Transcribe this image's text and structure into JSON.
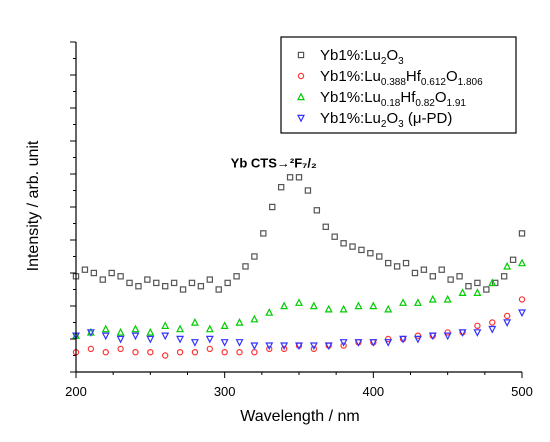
{
  "chart_data": {
    "type": "scatter",
    "xlabel": "Wavelength / nm",
    "ylabel": "Intensity / arb. unit",
    "xlim": [
      200,
      500
    ],
    "ylim": [
      0,
      100
    ],
    "x_ticks": [
      200,
      300,
      400,
      500
    ],
    "y_ticks_labeled": false,
    "grid": false,
    "legend_position": "top-right",
    "annotation": {
      "text": "Yb CTS→²F₇/₂",
      "x": 333,
      "y": 62
    },
    "series": [
      {
        "name": "Yb1%:Lu2O3",
        "label_parts": [
          [
            "Yb1%:Lu",
            "n"
          ],
          [
            "2",
            "sub"
          ],
          [
            "O",
            "n"
          ],
          [
            "3",
            "sub"
          ]
        ],
        "color": "#555555",
        "marker": "square",
        "x": [
          200,
          206,
          212,
          218,
          224,
          230,
          236,
          242,
          248,
          254,
          260,
          266,
          272,
          278,
          284,
          290,
          296,
          302,
          308,
          314,
          320,
          326,
          332,
          338,
          344,
          350,
          356,
          362,
          368,
          374,
          380,
          386,
          392,
          398,
          404,
          410,
          416,
          422,
          428,
          434,
          440,
          446,
          452,
          458,
          464,
          470,
          476,
          482,
          488,
          494,
          500
        ],
        "y": [
          29,
          31,
          30,
          28,
          30,
          29,
          27,
          26,
          28,
          27,
          26,
          27,
          25,
          27,
          26,
          28,
          25,
          27,
          29,
          32,
          35,
          42,
          50,
          56,
          59,
          59,
          55,
          49,
          44,
          41,
          39,
          38,
          37,
          36,
          35,
          33,
          32,
          33,
          30,
          31,
          29,
          31,
          28,
          29,
          26,
          27,
          25,
          27,
          29,
          34,
          42
        ]
      },
      {
        "name": "Yb1%:Lu0.388Hf0.612O1.806",
        "label_parts": [
          [
            "Yb1%:Lu",
            "n"
          ],
          [
            "0.388",
            "sub"
          ],
          [
            "Hf",
            "n"
          ],
          [
            "0.612",
            "sub"
          ],
          [
            "O",
            "n"
          ],
          [
            "1.806",
            "sub"
          ]
        ],
        "color": "#ff3333",
        "marker": "circle",
        "x": [
          200,
          210,
          220,
          230,
          240,
          250,
          260,
          270,
          280,
          290,
          300,
          310,
          320,
          330,
          340,
          350,
          360,
          370,
          380,
          390,
          400,
          410,
          420,
          430,
          440,
          450,
          460,
          470,
          480,
          490,
          500
        ],
        "y": [
          6,
          7,
          6,
          7,
          6,
          6,
          5,
          6,
          6,
          7,
          6,
          6,
          6,
          7,
          7,
          8,
          7,
          8,
          8,
          9,
          9,
          10,
          10,
          11,
          11,
          12,
          12,
          14,
          15,
          17,
          22
        ]
      },
      {
        "name": "Yb1%:Lu0.18Hf0.82O1.91",
        "label_parts": [
          [
            "Yb1%:Lu",
            "n"
          ],
          [
            "0.18",
            "sub"
          ],
          [
            "Hf",
            "n"
          ],
          [
            "0.82",
            "sub"
          ],
          [
            "O",
            "n"
          ],
          [
            "1.91",
            "sub"
          ]
        ],
        "color": "#00cc00",
        "marker": "triangle-up",
        "x": [
          200,
          210,
          220,
          230,
          240,
          250,
          260,
          270,
          280,
          290,
          300,
          310,
          320,
          330,
          340,
          350,
          360,
          370,
          380,
          390,
          400,
          410,
          420,
          430,
          440,
          450,
          460,
          470,
          480,
          490,
          500
        ],
        "y": [
          11,
          12,
          13,
          12,
          13,
          12,
          14,
          13,
          15,
          13,
          14,
          15,
          16,
          18,
          20,
          21,
          20,
          19,
          19,
          20,
          20,
          19,
          21,
          21,
          22,
          22,
          24,
          24,
          27,
          32,
          33
        ]
      },
      {
        "name": "Yb1%:Lu2O3 (μ-PD)",
        "label_parts": [
          [
            "Yb1%:Lu",
            "n"
          ],
          [
            "2",
            "sub"
          ],
          [
            "O",
            "n"
          ],
          [
            "3",
            "sub"
          ],
          [
            " (μ-PD)",
            "n"
          ]
        ],
        "color": "#3333ff",
        "marker": "triangle-down",
        "x": [
          200,
          210,
          220,
          230,
          240,
          250,
          260,
          270,
          280,
          290,
          300,
          310,
          320,
          330,
          340,
          350,
          360,
          370,
          380,
          390,
          400,
          410,
          420,
          430,
          440,
          450,
          460,
          470,
          480,
          490,
          500
        ],
        "y": [
          11,
          12,
          11,
          10,
          11,
          10,
          11,
          10,
          9,
          10,
          9,
          9,
          8,
          8,
          8,
          8,
          8,
          8,
          9,
          9,
          9,
          9,
          10,
          10,
          11,
          11,
          12,
          12,
          13,
          15,
          18
        ]
      }
    ]
  }
}
